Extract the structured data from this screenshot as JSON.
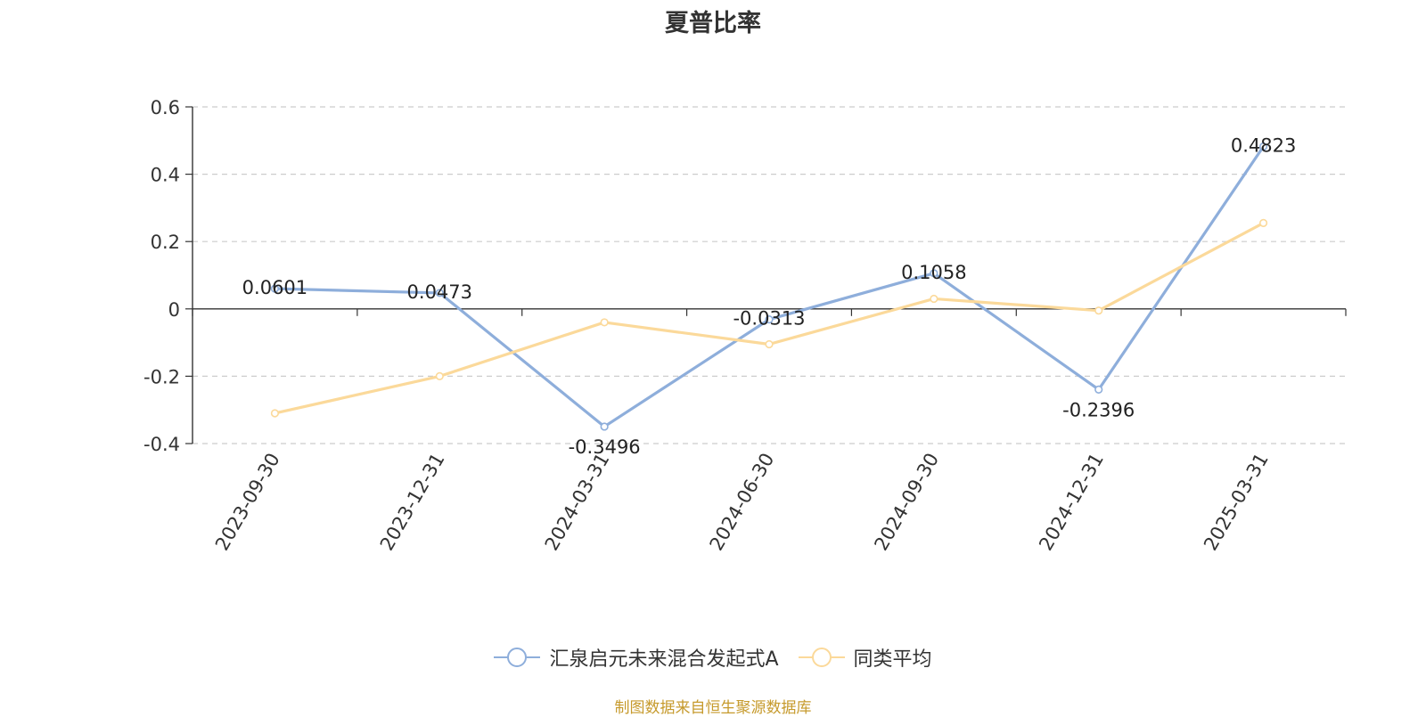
{
  "chart_data": {
    "type": "line",
    "title": "夏普比率",
    "categories": [
      "2023-09-30",
      "2023-12-31",
      "2024-03-31",
      "2024-06-30",
      "2024-09-30",
      "2024-12-31",
      "2025-03-31"
    ],
    "series": [
      {
        "name": "汇泉启元未来混合发起式A",
        "color": "#8eaedb",
        "values": [
          0.0601,
          0.0473,
          -0.3496,
          -0.0313,
          0.1058,
          -0.2396,
          0.4823
        ],
        "labels": [
          "0.0601",
          "0.0473",
          "-0.3496",
          "-0.0313",
          "0.1058",
          "-0.2396",
          "0.4823"
        ]
      },
      {
        "name": "同类平均",
        "color": "#fbd99a",
        "values": [
          -0.31,
          -0.2,
          -0.04,
          -0.105,
          0.03,
          -0.005,
          0.255
        ]
      }
    ],
    "ylim": [
      -0.4,
      0.6
    ],
    "yticks": [
      0.6,
      0.4,
      0.2,
      0,
      -0.2,
      -0.4
    ],
    "ytick_labels": [
      "0.6",
      "0.4",
      "0.2",
      "0",
      "-0.2",
      "-0.4"
    ],
    "grid": true,
    "legend_position": "bottom-center"
  },
  "source_note": "制图数据来自恒生聚源数据库"
}
